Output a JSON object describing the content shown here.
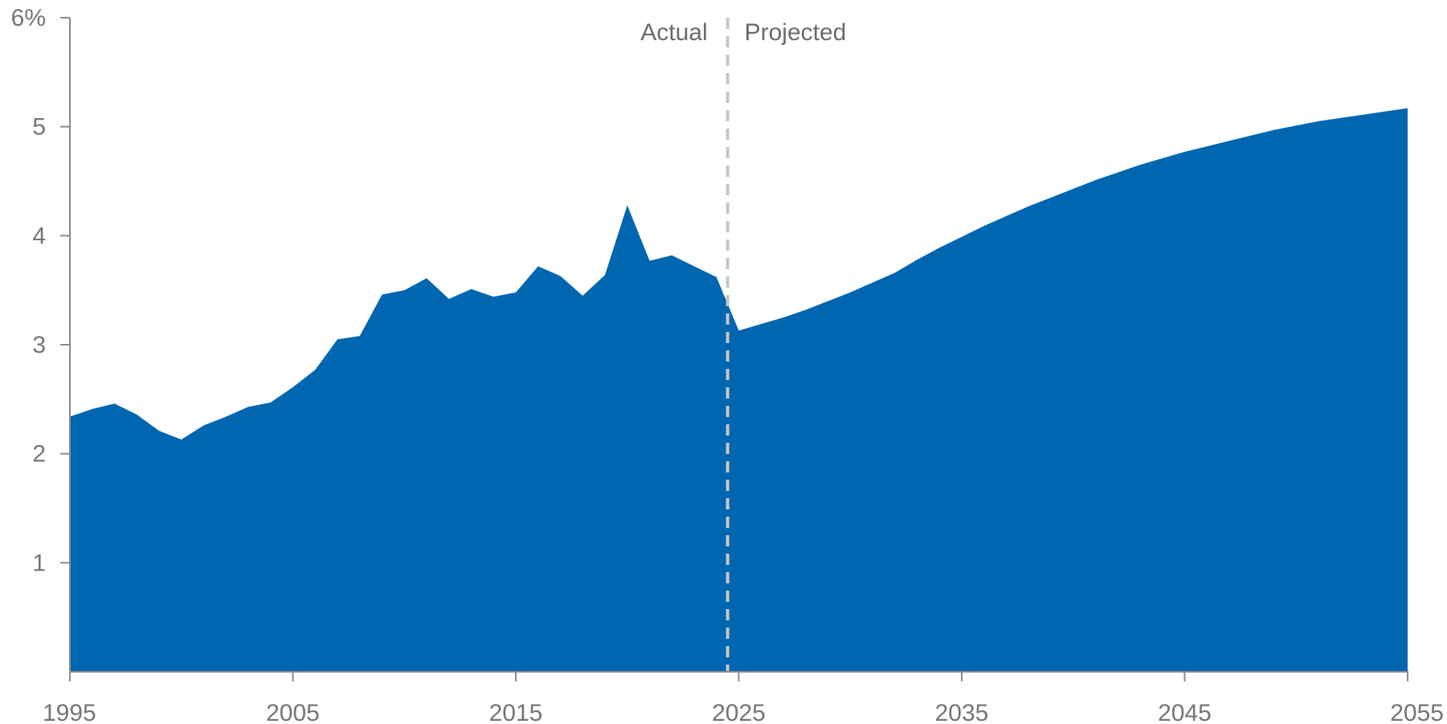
{
  "chart_data": {
    "type": "area",
    "title": "",
    "xlabel": "",
    "ylabel": "",
    "xlim": [
      1995,
      2055
    ],
    "ylim": [
      0,
      6
    ],
    "x_ticks": [
      1995,
      2005,
      2015,
      2025,
      2035,
      2045,
      2055
    ],
    "y_ticks": [
      {
        "value": 1,
        "label": "1"
      },
      {
        "value": 2,
        "label": "2"
      },
      {
        "value": 3,
        "label": "3"
      },
      {
        "value": 4,
        "label": "4"
      },
      {
        "value": 5,
        "label": "5"
      },
      {
        "value": 6,
        "label": "6%"
      }
    ],
    "grid": false,
    "fill_color": "#0066b0",
    "divider": {
      "x": 2024.5,
      "left_label": "Actual",
      "right_label": "Projected",
      "color": "#c6c6c6"
    },
    "series": [
      {
        "x": [
          1995,
          1996,
          1997,
          1998,
          1999,
          2000,
          2001,
          2002,
          2003,
          2004,
          2005,
          2006,
          2007,
          2008,
          2009,
          2010,
          2011,
          2012,
          2013,
          2014,
          2015,
          2016,
          2017,
          2018,
          2019,
          2020,
          2021,
          2022,
          2023,
          2024,
          2025,
          2026,
          2027,
          2028,
          2029,
          2030,
          2031,
          2032,
          2033,
          2034,
          2035,
          2036,
          2037,
          2038,
          2039,
          2040,
          2041,
          2042,
          2043,
          2044,
          2045,
          2046,
          2047,
          2048,
          2049,
          2050,
          2051,
          2052,
          2053,
          2054,
          2055
        ],
        "y": [
          2.34,
          2.41,
          2.46,
          2.36,
          2.21,
          2.13,
          2.26,
          2.34,
          2.43,
          2.47,
          2.61,
          2.77,
          3.05,
          3.08,
          3.46,
          3.5,
          3.61,
          3.42,
          3.51,
          3.44,
          3.48,
          3.72,
          3.63,
          3.45,
          3.64,
          4.28,
          3.77,
          3.82,
          3.72,
          3.62,
          3.13,
          3.19,
          3.25,
          3.32,
          3.4,
          3.48,
          3.57,
          3.66,
          3.78,
          3.89,
          3.99,
          4.09,
          4.18,
          4.27,
          4.35,
          4.43,
          4.51,
          4.58,
          4.65,
          4.71,
          4.77,
          4.82,
          4.87,
          4.92,
          4.97,
          5.01,
          5.05,
          5.08,
          5.11,
          5.14,
          5.17
        ]
      }
    ]
  }
}
